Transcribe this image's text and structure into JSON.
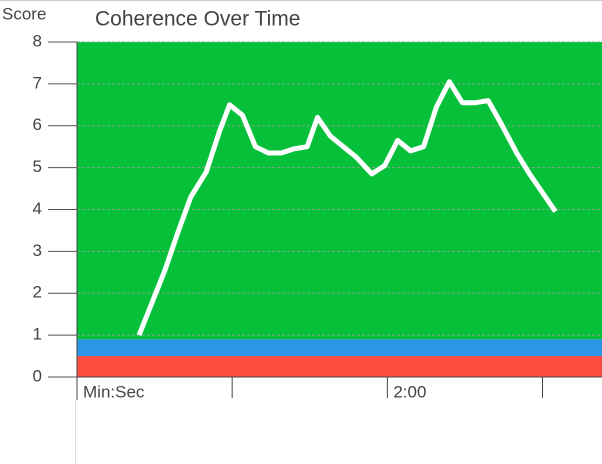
{
  "chart_data": {
    "type": "line",
    "title": "Coherence Over Time",
    "y_label": "Score",
    "x": [
      24,
      34,
      39,
      44,
      50,
      55,
      59,
      64,
      69,
      74,
      79,
      84,
      89,
      93,
      98,
      103,
      108,
      114,
      119,
      124,
      129,
      134,
      139,
      144,
      149,
      154,
      159,
      164,
      170,
      175,
      180,
      185
    ],
    "series": [
      {
        "name": "Coherence",
        "color": "#ffffff",
        "values": [
          1.0,
          2.55,
          3.45,
          4.3,
          4.9,
          5.85,
          6.5,
          6.25,
          5.5,
          5.35,
          5.35,
          5.45,
          5.5,
          6.2,
          5.75,
          5.5,
          5.25,
          4.85,
          5.05,
          5.65,
          5.4,
          5.5,
          6.45,
          7.05,
          6.55,
          6.55,
          6.6,
          6.05,
          5.35,
          4.85,
          4.4,
          3.95
        ]
      }
    ],
    "bands": [
      {
        "from": 0,
        "to": 0.5,
        "color": "#fc4b3f"
      },
      {
        "from": 0.5,
        "to": 0.9,
        "color": "#2a96e6"
      },
      {
        "from": 0.9,
        "to": 8,
        "color": "#06c03a"
      }
    ],
    "xlim": [
      0,
      203
    ],
    "ylim": [
      0,
      8
    ],
    "xticks": [
      {
        "value": 0,
        "label": "Min:Sec"
      },
      {
        "value": 60,
        "label": null
      },
      {
        "value": 120,
        "label": "2:00"
      },
      {
        "value": 180,
        "label": null
      }
    ],
    "yticks": [
      0,
      1,
      2,
      3,
      4,
      5,
      6,
      7,
      8
    ],
    "grid": true
  }
}
